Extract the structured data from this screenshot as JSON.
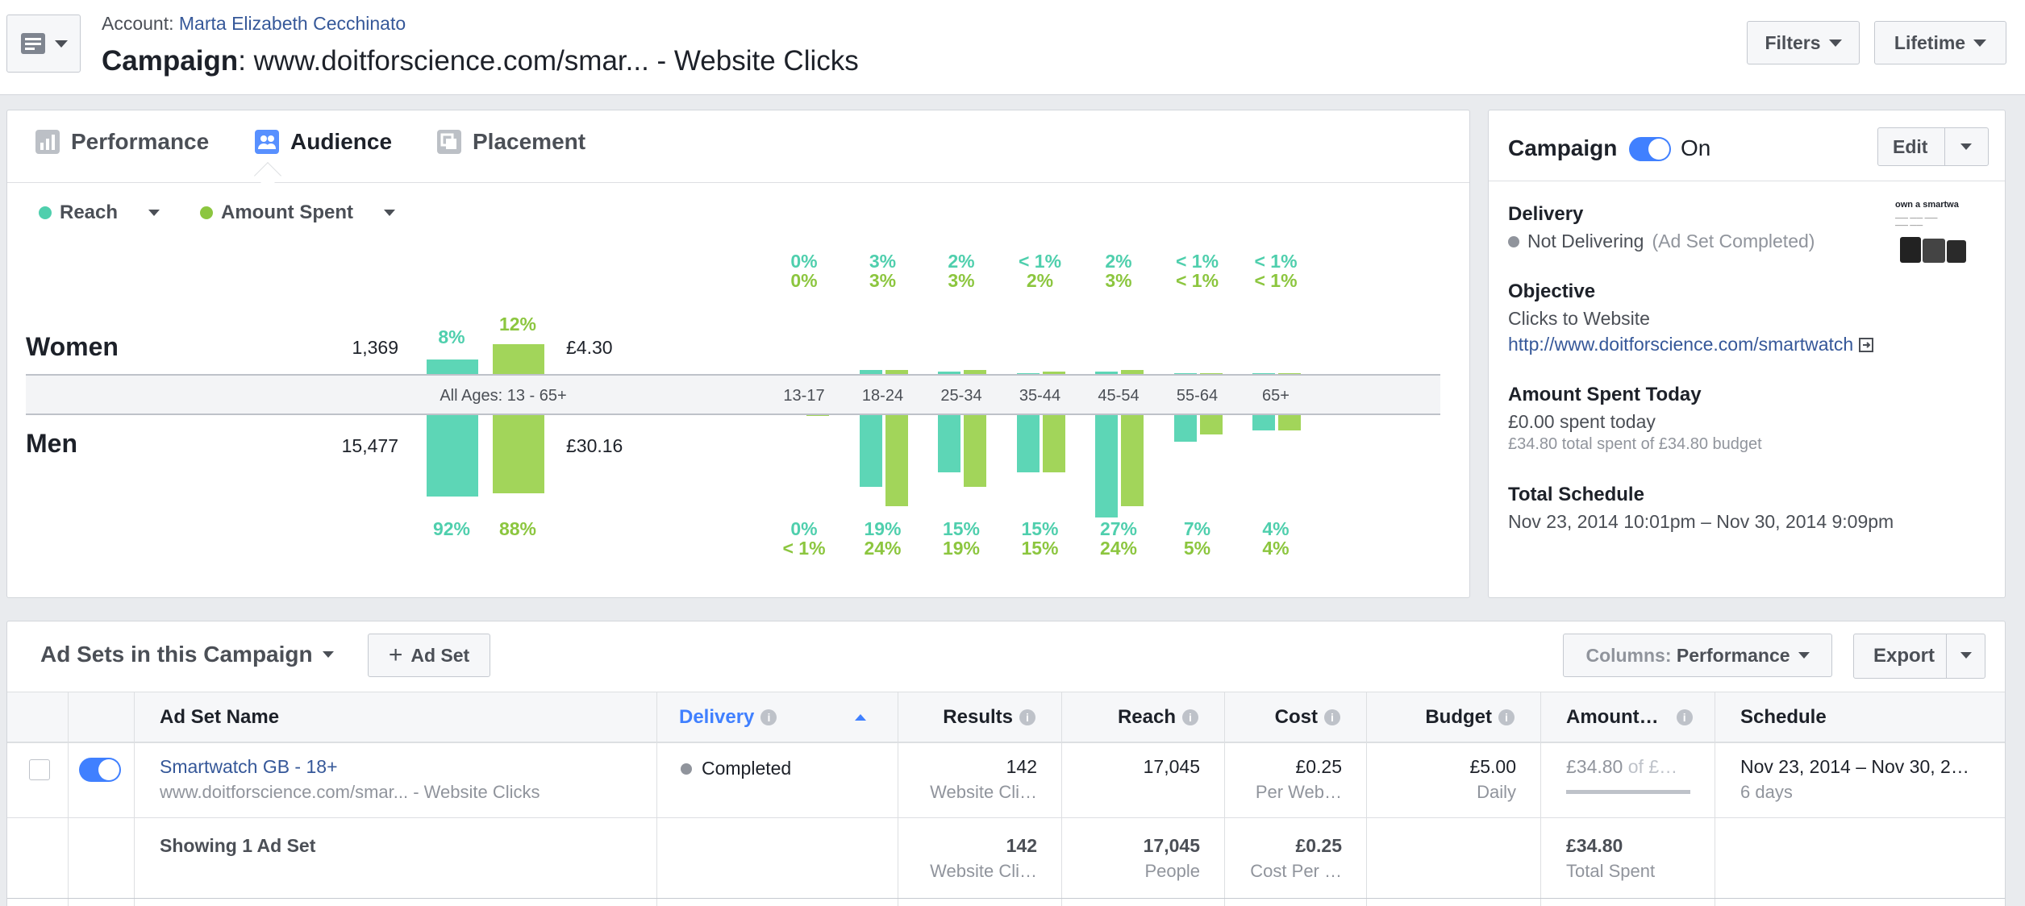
{
  "header": {
    "account_label": "Account: ",
    "account_name": "Marta Elizabeth Cecchinato",
    "campaign_label": "Campaign",
    "campaign_name": ": www.doitforscience.com/smar... - Website Clicks",
    "filters_label": "Filters",
    "lifetime_label": "Lifetime"
  },
  "tabs": [
    {
      "label": "Performance",
      "icon": "bar-chart-icon"
    },
    {
      "label": "Audience",
      "icon": "people-icon"
    },
    {
      "label": "Placement",
      "icon": "placement-icon"
    }
  ],
  "metrics": {
    "reach": {
      "label": "Reach",
      "color": "#4fcfad"
    },
    "amount": {
      "label": "Amount Spent",
      "color": "#8cc63f"
    }
  },
  "audience": {
    "all_ages_label": "All Ages: 13 - 65+",
    "women": {
      "label": "Women",
      "reach": "1,369",
      "amount": "£4.30",
      "reach_pct": "8%",
      "amount_pct": "12%",
      "reach_frac": 0.08,
      "amount_frac": 0.12
    },
    "men": {
      "label": "Men",
      "reach": "15,477",
      "amount": "£30.16",
      "reach_pct": "92%",
      "amount_pct": "88%",
      "reach_frac": 0.92,
      "amount_frac": 0.88
    }
  },
  "chart_data": {
    "type": "bar",
    "categories": [
      "13-17",
      "18-24",
      "25-34",
      "35-44",
      "45-54",
      "55-64",
      "65+"
    ],
    "series": [
      {
        "name": "Reach",
        "women_pct": [
          "0%",
          "3%",
          "2%",
          "< 1%",
          "2%",
          "< 1%",
          "< 1%"
        ],
        "men_pct": [
          "0%",
          "19%",
          "15%",
          "15%",
          "27%",
          "7%",
          "4%"
        ],
        "women_values": [
          0,
          3,
          2,
          0.5,
          2,
          0.5,
          0.5
        ],
        "men_values": [
          0,
          19,
          15,
          15,
          27,
          7,
          4
        ]
      },
      {
        "name": "Amount Spent",
        "women_pct": [
          "0%",
          "3%",
          "3%",
          "2%",
          "3%",
          "< 1%",
          "< 1%"
        ],
        "men_pct": [
          "< 1%",
          "24%",
          "19%",
          "15%",
          "24%",
          "5%",
          "4%"
        ],
        "women_values": [
          0,
          3,
          3,
          2,
          3,
          0.5,
          0.5
        ],
        "men_values": [
          0.3,
          24,
          19,
          15,
          24,
          5,
          4
        ]
      }
    ]
  },
  "campaign_panel": {
    "title": "Campaign",
    "status": "On",
    "edit_label": "Edit",
    "delivery_label": "Delivery",
    "delivery_value": "Not Delivering",
    "delivery_note": "(Ad Set Completed)",
    "objective_label": "Objective",
    "objective_value": "Clicks to Website",
    "objective_url": "http://www.doitforscience.com/smartwatch",
    "spent_today_label": "Amount Spent Today",
    "spent_today_value": "£0.00 spent today",
    "spent_total_note": "£34.80 total spent of £34.80 budget",
    "schedule_label": "Total Schedule",
    "schedule_value": "Nov 23, 2014 10:01pm – Nov 30, 2014 9:09pm",
    "thumb_text": "own a smartwa"
  },
  "adsets": {
    "title": "Ad Sets in this Campaign",
    "add_label": "Ad Set",
    "columns_label": "Columns: ",
    "columns_value": "Performance",
    "export_label": "Export",
    "headers": [
      "Ad Set Name",
      "Delivery",
      "Results",
      "Reach",
      "Cost",
      "Budget",
      "Amount…",
      "Schedule"
    ],
    "row": {
      "name": "Smartwatch GB - 18+",
      "sub": "www.doitforscience.com/smar... - Website Clicks",
      "delivery": "Completed",
      "results": "142",
      "results_sub": "Website Cli…",
      "reach": "17,045",
      "cost": "£0.25",
      "cost_sub": "Per Web…",
      "budget": "£5.00",
      "budget_sub": "Daily",
      "amount": "£34.80",
      "amount_of": " of £…",
      "amount_frac": 1.0,
      "schedule": "Nov 23, 2014 – Nov 30, 2…",
      "schedule_sub": "6 days"
    },
    "summary": {
      "label": "Showing 1 Ad Set",
      "results": "142",
      "results_sub": "Website Cli…",
      "reach": "17,045",
      "reach_sub": "People",
      "cost": "£0.25",
      "cost_sub": "Cost Per …",
      "amount": "£34.80",
      "amount_sub": "Total Spent"
    }
  }
}
